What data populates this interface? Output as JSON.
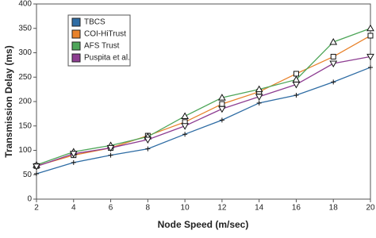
{
  "chart_data": {
    "type": "line",
    "x_label": "Node Speed (m/sec)",
    "y_label": "Transmission Delay (ms)",
    "x": [
      2,
      4,
      6,
      8,
      10,
      12,
      14,
      16,
      18,
      20
    ],
    "series": [
      {
        "name": "TBCS",
        "color": "#2e6ca4",
        "marker": "plus",
        "values": [
          52,
          75,
          90,
          103,
          133,
          162,
          197,
          213,
          240,
          270
        ]
      },
      {
        "name": "COI-HiTrust",
        "color": "#e8822b",
        "marker": "square",
        "values": [
          68,
          90,
          105,
          130,
          158,
          195,
          220,
          257,
          292,
          335
        ]
      },
      {
        "name": "AFS Trust",
        "color": "#4fa65a",
        "marker": "triangle-up",
        "values": [
          70,
          97,
          110,
          128,
          170,
          208,
          225,
          245,
          322,
          350
        ]
      },
      {
        "name": "Puspita et al.",
        "color": "#8e3e92",
        "marker": "triangle-down",
        "values": [
          67,
          93,
          105,
          122,
          150,
          185,
          210,
          235,
          278,
          292
        ]
      }
    ],
    "xlim": [
      2,
      20
    ],
    "xticks": [
      2,
      4,
      6,
      8,
      10,
      12,
      14,
      16,
      18,
      20
    ],
    "ylim": [
      0,
      400
    ],
    "yticks": [
      0,
      50,
      100,
      150,
      200,
      250,
      300,
      350,
      400
    ],
    "grid": false,
    "legend_position": "upper-left"
  }
}
